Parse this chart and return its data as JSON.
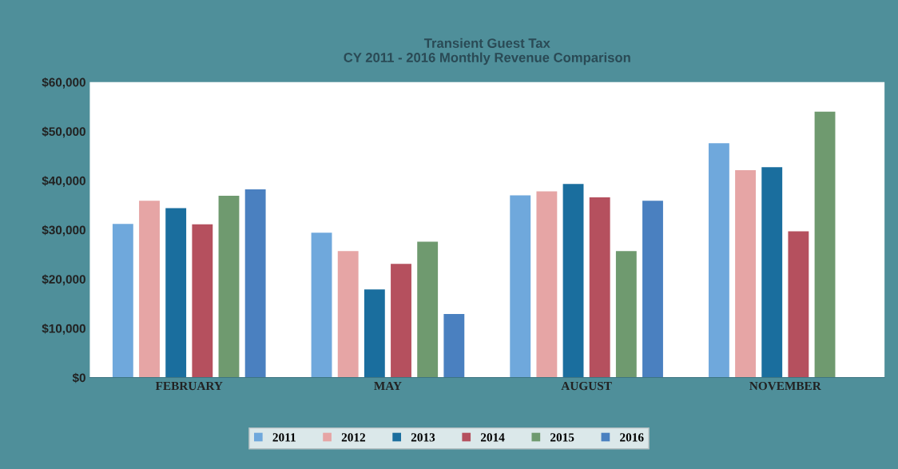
{
  "chart_data": {
    "type": "bar",
    "title": "Transient Guest Tax\nCY 2011 - 2016 Monthly Revenue Comparison",
    "categories": [
      "FEBRUARY",
      "MAY",
      "AUGUST",
      "NOVEMBER"
    ],
    "series": [
      {
        "name": "2011",
        "color": "#6fa8dc",
        "values": [
          31200,
          29400,
          37000,
          47600
        ]
      },
      {
        "name": "2012",
        "color": "#e6a5a5",
        "values": [
          35900,
          25700,
          37800,
          42100
        ]
      },
      {
        "name": "2013",
        "color": "#1a6e9e",
        "values": [
          34400,
          17900,
          39300,
          42700
        ]
      },
      {
        "name": "2014",
        "color": "#b5505e",
        "values": [
          31100,
          23100,
          36600,
          29700
        ]
      },
      {
        "name": "2015",
        "color": "#6f9a6f",
        "values": [
          36900,
          27600,
          25700,
          54000
        ]
      },
      {
        "name": "2016",
        "color": "#4a80c0",
        "values": [
          38200,
          12900,
          35900,
          null
        ]
      }
    ],
    "ylim": [
      0,
      60000
    ],
    "yticks": [
      {
        "value": 0,
        "label": "$0"
      },
      {
        "value": 10000,
        "label": "$10,000"
      },
      {
        "value": 20000,
        "label": "$20,000"
      },
      {
        "value": 30000,
        "label": "$30,000"
      },
      {
        "value": 40000,
        "label": "$40,000"
      },
      {
        "value": 50000,
        "label": "$50,000"
      },
      {
        "value": 60000,
        "label": "$60,000"
      }
    ],
    "grid": false,
    "legend": "bottom"
  }
}
